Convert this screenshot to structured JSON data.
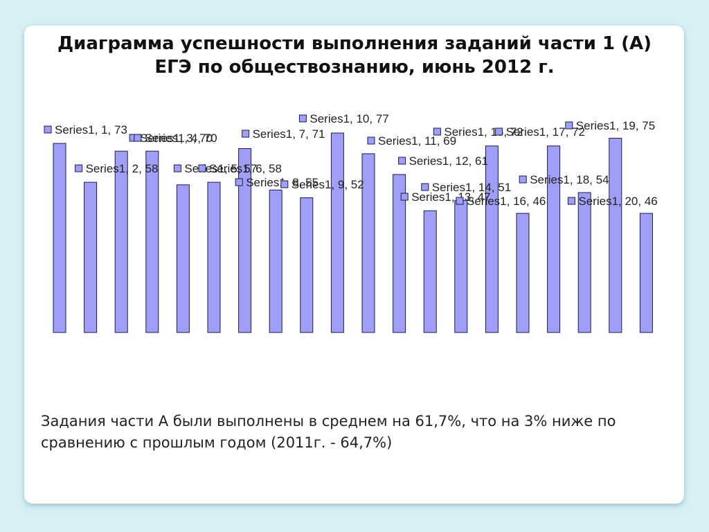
{
  "slide": {
    "title_line1": "Диаграмма успешности выполнения заданий части 1 (А)",
    "title_line2": "ЕГЭ по обществознанию, июнь 2012 г.",
    "note": "Задания части А были выполнены в среднем на 61,7%, что на 3% ниже по сравнению с прошлым годом (2011г. - 64,7%)"
  },
  "chart_data": {
    "type": "bar",
    "title": "",
    "xlabel": "",
    "ylabel": "",
    "categories": [
      "1",
      "2",
      "3",
      "4",
      "5",
      "6",
      "7",
      "8",
      "9",
      "10",
      "11",
      "12",
      "13",
      "14",
      "15",
      "16",
      "17",
      "18",
      "19",
      "20"
    ],
    "series": [
      {
        "name": "Series1",
        "values": [
          73,
          58,
          70,
          70,
          57,
          58,
          71,
          55,
          52,
          77,
          69,
          61,
          47,
          51,
          72,
          46,
          72,
          54,
          75,
          46
        ]
      }
    ],
    "data_label_format": "Series1, {x}, {y}",
    "ylim": [
      0,
      80
    ],
    "grid": false,
    "legend": "none",
    "colors": {
      "bar_fill": "#9f9ff7",
      "bar_stroke": "#1a1a4a",
      "marker_fill": "#9f9ff7"
    }
  }
}
